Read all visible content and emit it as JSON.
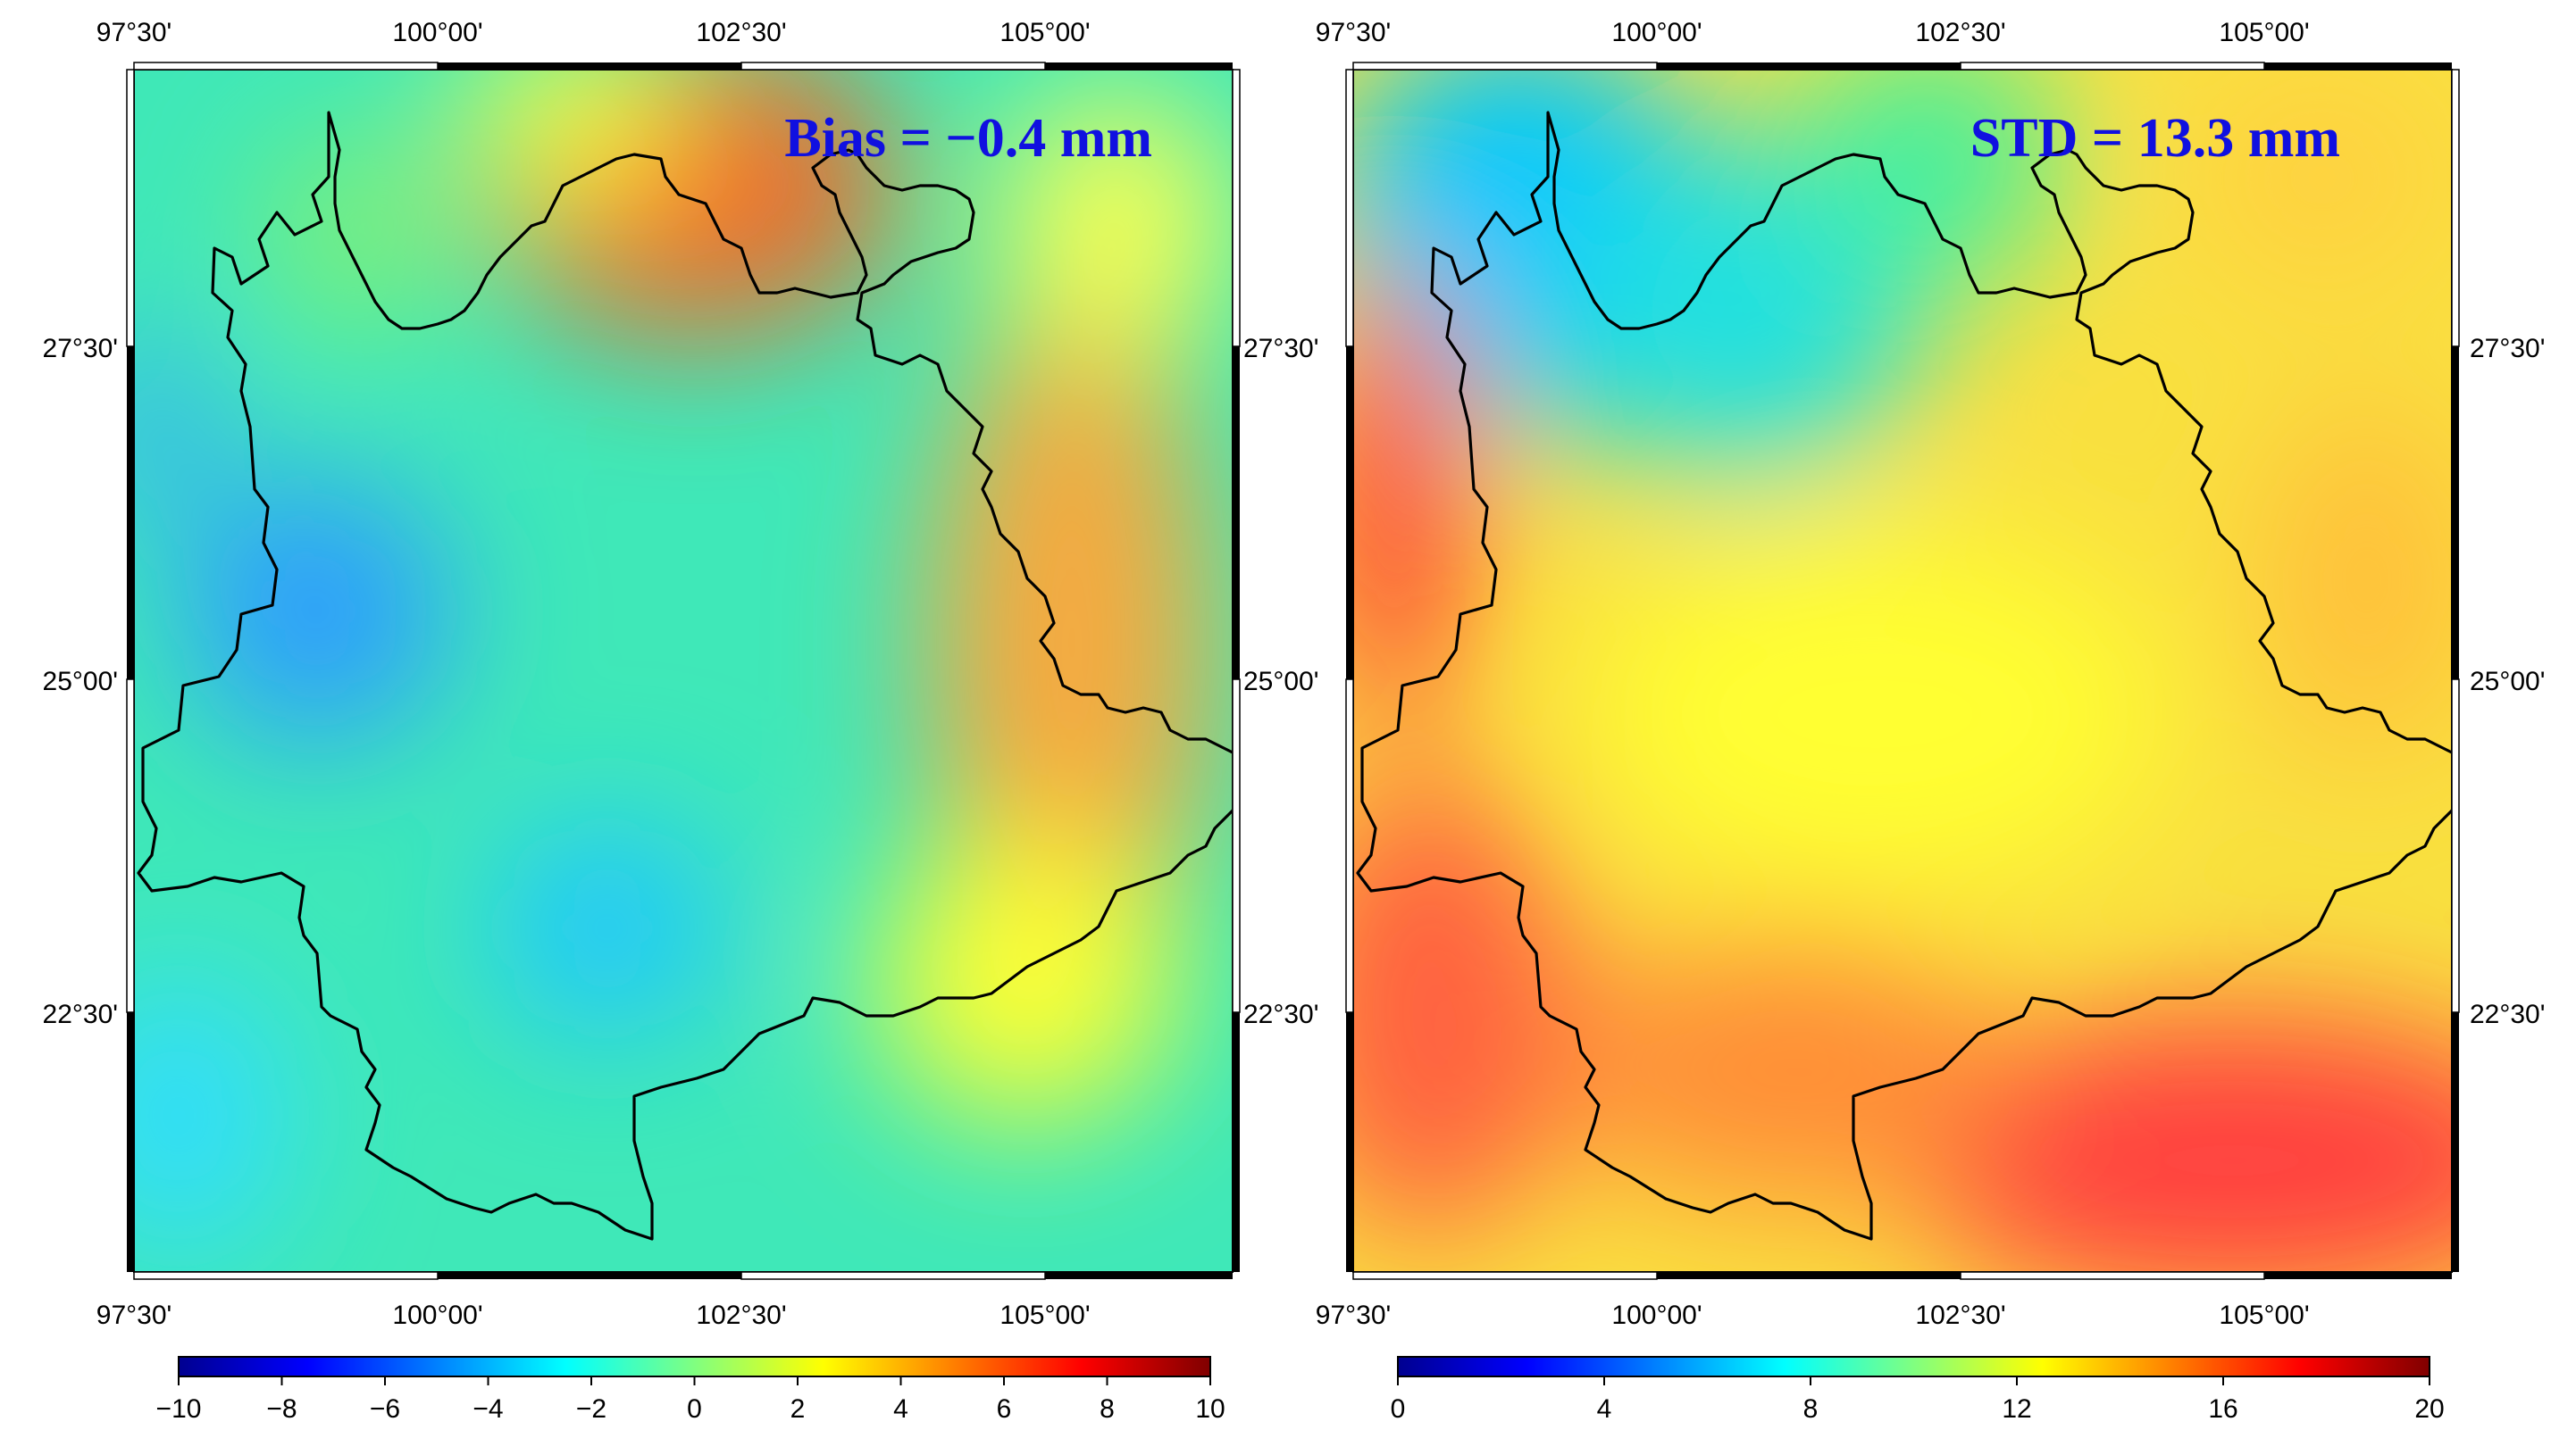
{
  "panels": [
    {
      "name": "bias-map",
      "stat_label": "Bias = −0.4 mm",
      "stat_color": "#1010e0",
      "lon_ticks": [
        "97°30'",
        "100°00'",
        "102°30'",
        "105°00'"
      ],
      "lat_ticks": [
        "27°30'",
        "25°00'",
        "22°30'"
      ],
      "lat_tick_side": "left",
      "field_blobs": [
        {
          "role": "warm-north",
          "color": "#f26b2a",
          "strength": 0.9
        },
        {
          "role": "warm-east",
          "color": "#f3a43a",
          "strength": 0.9
        },
        {
          "role": "cold-west",
          "color": "#2aa6ff",
          "strength": 0.8
        },
        {
          "role": "cold-south",
          "color": "#1ec9ff",
          "strength": 0.7
        },
        {
          "role": "yellow-southeast",
          "color": "#ffff33",
          "strength": 0.8
        }
      ],
      "colorbar": {
        "min": -10,
        "max": 10,
        "tick_labels": [
          "−10",
          "−8",
          "−6",
          "−4",
          "−2",
          "0",
          "2",
          "4",
          "6",
          "8",
          "10"
        ]
      }
    },
    {
      "name": "std-map",
      "stat_label": "STD =  13.3 mm",
      "stat_color": "#1010e0",
      "lon_ticks": [
        "97°30'",
        "100°00'",
        "102°30'",
        "105°00'"
      ],
      "lat_ticks": [
        "27°30'",
        "25°00'",
        "22°30'"
      ],
      "lat_tick_side": "right",
      "field_blobs": [
        {
          "role": "cold-northwest",
          "color": "#00ccff",
          "strength": 0.9
        },
        {
          "role": "cold-north",
          "color": "#22e0e0",
          "strength": 0.8
        },
        {
          "role": "hot-west",
          "color": "#ff4a3a",
          "strength": 0.9
        },
        {
          "role": "hot-south",
          "color": "#ff3f3f",
          "strength": 0.9
        },
        {
          "role": "yellow-center",
          "color": "#ffff3a",
          "strength": 0.8
        }
      ],
      "colorbar": {
        "min": 0,
        "max": 20,
        "tick_labels": [
          "0",
          "4",
          "8",
          "12",
          "16",
          "20"
        ]
      }
    }
  ],
  "colormap": [
    "#000090",
    "#0000ff",
    "#0080ff",
    "#00ffff",
    "#80ff80",
    "#ffff00",
    "#ff8000",
    "#ff0000",
    "#800000"
  ]
}
